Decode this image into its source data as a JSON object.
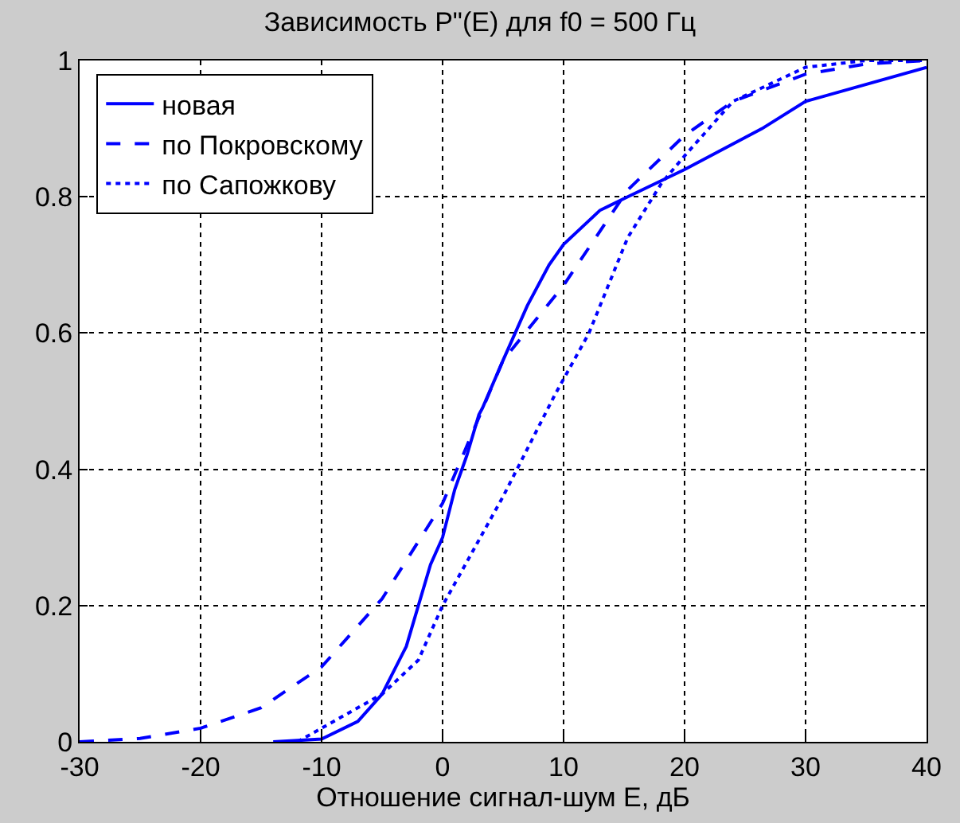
{
  "chart_data": {
    "type": "line",
    "title": "Зависимость P\"(E) для f0 = 500 Гц",
    "xlabel": "Отношение сигнал-шум E, дБ",
    "xlim": [
      -30,
      40
    ],
    "xticks": [
      -30,
      -20,
      -10,
      0,
      10,
      20,
      30,
      40
    ],
    "ylim": [
      0,
      1
    ],
    "yticks": [
      0,
      0.2,
      0.4,
      0.6,
      0.8,
      1
    ],
    "grid": true,
    "legend": "top left",
    "marker": "none",
    "series": [
      {
        "name": "новая",
        "color": "#0000ff",
        "line_style": "solid",
        "x": [
          -14,
          -10,
          -7,
          -5,
          -3,
          -1,
          0,
          1,
          2,
          3,
          3.3,
          5,
          7,
          8.8,
          10,
          13,
          15.3,
          20,
          26.4,
          30,
          40
        ],
        "values": [
          0,
          0.004,
          0.03,
          0.07,
          0.14,
          0.26,
          0.3,
          0.37,
          0.42,
          0.48,
          0.49,
          0.56,
          0.64,
          0.7,
          0.73,
          0.78,
          0.8,
          0.84,
          0.9,
          0.94,
          0.99
        ]
      },
      {
        "name": "по Покровскому",
        "color": "#0000ff",
        "line_style": "dashed",
        "x": [
          -30,
          -25,
          -20,
          -15,
          -10,
          -5,
          0,
          5,
          10,
          15.3,
          20,
          24,
          30,
          35,
          40
        ],
        "values": [
          0,
          0.005,
          0.02,
          0.05,
          0.11,
          0.21,
          0.35,
          0.56,
          0.67,
          0.81,
          0.89,
          0.94,
          0.98,
          0.995,
          1.0
        ]
      },
      {
        "name": "по Сапожкову",
        "color": "#0000ff",
        "line_style": "dotted",
        "x": [
          -12,
          -10,
          -5,
          -2,
          0,
          5,
          9.3,
          12.1,
          15.3,
          18.1,
          20,
          24,
          30,
          35,
          40
        ],
        "values": [
          0,
          0.02,
          0.07,
          0.12,
          0.2,
          0.36,
          0.51,
          0.6,
          0.74,
          0.82,
          0.86,
          0.94,
          0.99,
          1.0,
          1.0
        ]
      }
    ]
  }
}
